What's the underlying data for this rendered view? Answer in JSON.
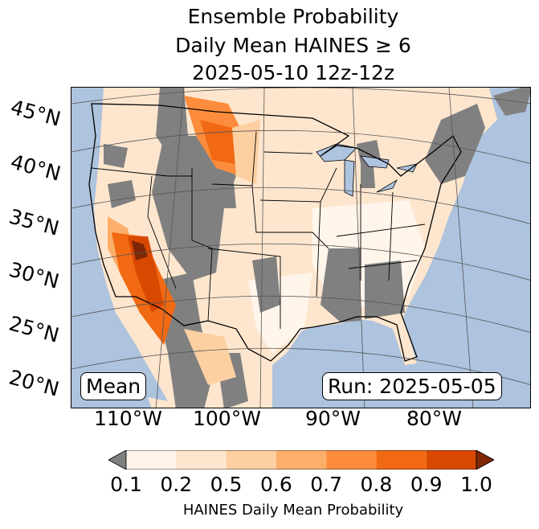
{
  "title": {
    "line1": "Ensemble Probability",
    "line2": "Daily Mean HAINES ≥ 6",
    "line3": "2025-05-10 12z-12z"
  },
  "map": {
    "lat_labels": [
      "45°N",
      "40°N",
      "35°N",
      "30°N",
      "25°N",
      "20°N"
    ],
    "lon_labels": [
      "110°W",
      "100°W",
      "90°W",
      "80°W"
    ],
    "stat_box": "Mean",
    "run_box": "Run: 2025-05-05",
    "colors": {
      "ocean": "#adc3de",
      "lake": "#adc3de",
      "missing": "#808080",
      "border": "#000000",
      "grid": "#555555"
    }
  },
  "colorbar": {
    "ticks": [
      "0.1",
      "0.2",
      "0.5",
      "0.6",
      "0.7",
      "0.8",
      "0.9",
      "1.0"
    ],
    "colors": [
      "#fff5eb",
      "#fee6ce",
      "#fdd0a2",
      "#fdae6b",
      "#fd8d3c",
      "#f16913",
      "#d94801"
    ],
    "under_color": "#808080",
    "over_color": "#7f2704",
    "label": "HAINES Daily Mean Probability"
  }
}
